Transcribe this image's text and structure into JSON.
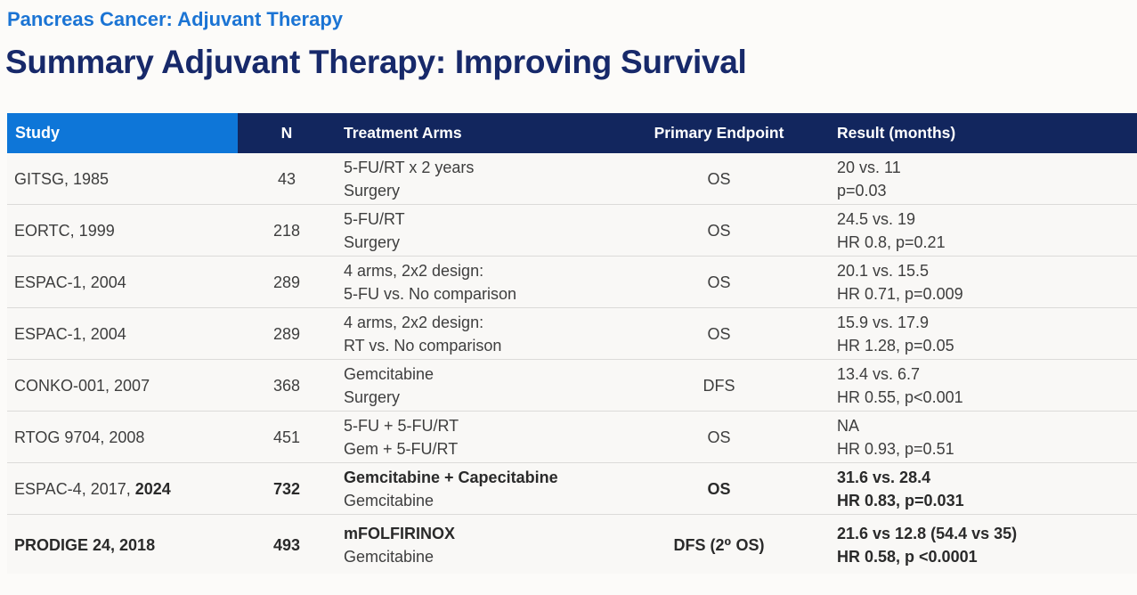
{
  "page": {
    "kicker": "Pancreas Cancer: Adjuvant Therapy",
    "title": "Summary Adjuvant Therapy: Improving Survival"
  },
  "colors": {
    "kicker_blue": "#1b74d4",
    "title_navy": "#17296a",
    "header_study_blue": "#0e76d8",
    "header_navy": "#12265e",
    "row_background": "#f9f8f6",
    "separator_gray": "#dcdbd9"
  },
  "table": {
    "columns": [
      "Study",
      "N",
      "Treatment Arms",
      "Primary Endpoint",
      "Result (months)"
    ],
    "rows": [
      {
        "study_regular": "GITSG, 1985",
        "study_bold": "",
        "n": "43",
        "arm1": "5-FU/RT x 2 years",
        "arm2": "Surgery",
        "endpoint": "OS",
        "result1": "20 vs. 11",
        "result2": "p=0.03"
      },
      {
        "study_regular": "EORTC, 1999",
        "study_bold": "",
        "n": "218",
        "arm1": "5-FU/RT",
        "arm2": "Surgery",
        "endpoint": "OS",
        "result1": "24.5 vs. 19",
        "result2": "HR 0.8, p=0.21"
      },
      {
        "study_regular": "ESPAC-1, 2004",
        "study_bold": "",
        "n": "289",
        "arm1": "4 arms, 2x2 design:",
        "arm2": "5-FU vs. No comparison",
        "endpoint": "OS",
        "result1": "20.1 vs. 15.5",
        "result2": "HR 0.71, p=0.009"
      },
      {
        "study_regular": "ESPAC-1, 2004",
        "study_bold": "",
        "n": "289",
        "arm1": "4 arms, 2x2 design:",
        "arm2": "RT vs. No comparison",
        "endpoint": "OS",
        "result1": "15.9 vs. 17.9",
        "result2": "HR 1.28, p=0.05"
      },
      {
        "study_regular": "CONKO-001, 2007",
        "study_bold": "",
        "n": "368",
        "arm1": "Gemcitabine",
        "arm2": "Surgery",
        "endpoint": "DFS",
        "result1": "13.4 vs. 6.7",
        "result2": "HR 0.55, p<0.001"
      },
      {
        "study_regular": "RTOG 9704, 2008",
        "study_bold": "",
        "n": "451",
        "arm1": "5-FU + 5-FU/RT",
        "arm2": "Gem + 5-FU/RT",
        "endpoint": "OS",
        "result1": "NA",
        "result2": "HR 0.93, p=0.51"
      },
      {
        "study_regular": "ESPAC-4, 2017, ",
        "study_bold": "2024",
        "n": "732",
        "arm1": "Gemcitabine + Capecitabine",
        "arm2": "Gemcitabine",
        "endpoint": "OS",
        "result1": "31.6 vs. 28.4",
        "result2": "HR 0.83, p=0.031"
      },
      {
        "study_regular": "",
        "study_bold": "PRODIGE 24, 2018",
        "n": "493",
        "arm1": "mFOLFIRINOX",
        "arm2": "Gemcitabine",
        "endpoint": "DFS (2⁰ OS)",
        "result1": "21.6 vs 12.8 (54.4 vs 35)",
        "result2": "HR 0.58, p <0.0001"
      }
    ]
  }
}
